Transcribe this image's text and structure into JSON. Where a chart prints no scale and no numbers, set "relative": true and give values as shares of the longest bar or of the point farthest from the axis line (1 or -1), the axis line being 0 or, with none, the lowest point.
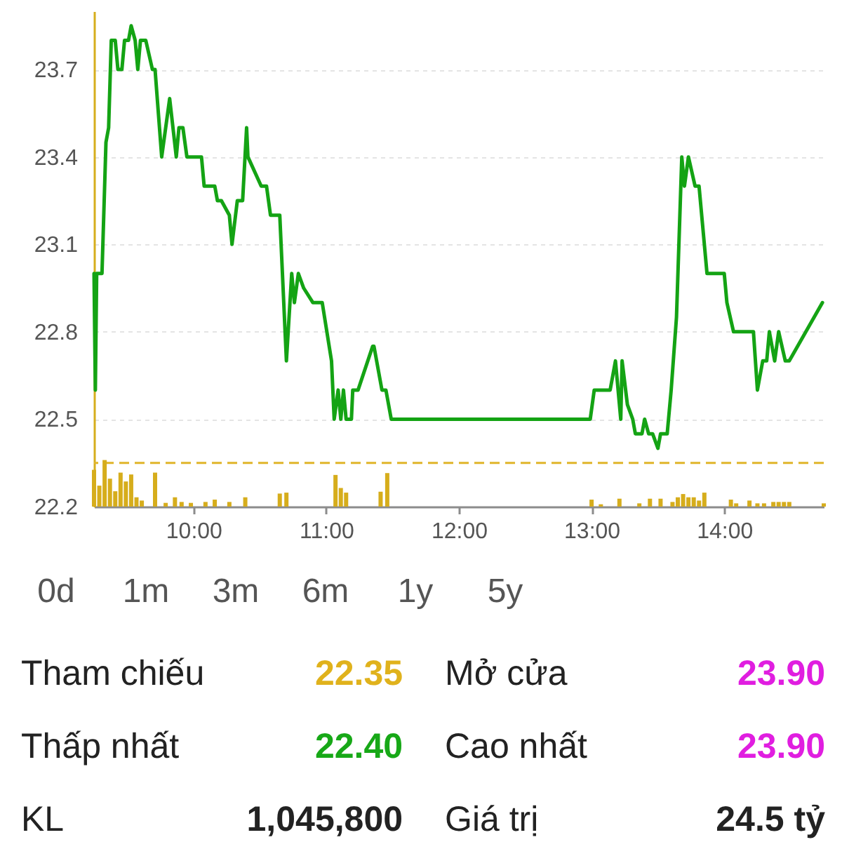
{
  "chart_data": [
    {
      "type": "line",
      "x": [
        9.25,
        9.26,
        9.27,
        9.31,
        9.34,
        9.36,
        9.38,
        9.41,
        9.43,
        9.46,
        9.48,
        9.51,
        9.53,
        9.56,
        9.58,
        9.6,
        9.64,
        9.69,
        9.71,
        9.76,
        9.79,
        9.82,
        9.87,
        9.89,
        9.92,
        9.95,
        10.06,
        10.08,
        10.16,
        10.18,
        10.21,
        10.27,
        10.29,
        10.33,
        10.37,
        10.4,
        10.41,
        10.51,
        10.55,
        10.58,
        10.65,
        10.7,
        10.74,
        10.76,
        10.79,
        10.83,
        10.9,
        10.97,
        11.04,
        11.06,
        11.09,
        11.11,
        11.13,
        11.15,
        11.19,
        11.2,
        11.24,
        11.35,
        11.36,
        11.42,
        11.45,
        11.49,
        12.99,
        13.02,
        13.14,
        13.18,
        13.22,
        13.23,
        13.27,
        13.31,
        13.33,
        13.38,
        13.4,
        13.43,
        13.46,
        13.5,
        13.52,
        13.57,
        13.6,
        13.64,
        13.68,
        13.7,
        13.73,
        13.78,
        13.81,
        13.87,
        14.0,
        14.02,
        14.07,
        14.22,
        14.25,
        14.29,
        14.32,
        14.34,
        14.38,
        14.41,
        14.46,
        14.49,
        14.74
      ],
      "series": [
        {
          "color": "#14a314",
          "values": [
            23.0,
            22.6,
            23.0,
            23.0,
            23.45,
            23.5,
            23.8,
            23.8,
            23.7,
            23.7,
            23.8,
            23.8,
            23.85,
            23.8,
            23.7,
            23.8,
            23.8,
            23.7,
            23.7,
            23.4,
            23.5,
            23.6,
            23.4,
            23.5,
            23.5,
            23.4,
            23.4,
            23.3,
            23.3,
            23.25,
            23.25,
            23.2,
            23.1,
            23.25,
            23.25,
            23.5,
            23.4,
            23.3,
            23.3,
            23.2,
            23.2,
            22.7,
            23.0,
            22.9,
            23.0,
            22.95,
            22.9,
            22.9,
            22.7,
            22.5,
            22.6,
            22.5,
            22.6,
            22.5,
            22.5,
            22.6,
            22.6,
            22.75,
            22.75,
            22.6,
            22.6,
            22.5,
            22.5,
            22.6,
            22.6,
            22.7,
            22.5,
            22.7,
            22.55,
            22.5,
            22.45,
            22.45,
            22.5,
            22.45,
            22.45,
            22.4,
            22.45,
            22.45,
            22.6,
            22.85,
            23.4,
            23.3,
            23.4,
            23.3,
            23.3,
            23.0,
            23.0,
            22.9,
            22.8,
            22.8,
            22.6,
            22.7,
            22.7,
            22.8,
            22.7,
            22.8,
            22.7,
            22.7,
            22.9
          ]
        }
      ],
      "xlim": [
        9.25,
        14.75
      ],
      "xticks": [
        {
          "value": 10,
          "label": "10:00"
        },
        {
          "value": 11,
          "label": "11:00"
        },
        {
          "value": 12,
          "label": "12:00"
        },
        {
          "value": 13,
          "label": "13:00"
        },
        {
          "value": 14,
          "label": "14:00"
        }
      ],
      "ylim": [
        22.2,
        23.9
      ],
      "yticks": [
        22.2,
        22.5,
        22.8,
        23.1,
        23.4,
        23.7
      ],
      "grid": "y",
      "ref_lines": [
        {
          "axis": "y",
          "value": 22.35,
          "color": "#e0b52a",
          "line_style": "dashed"
        }
      ]
    },
    {
      "type": "bar",
      "relative": true,
      "x": [
        9.25,
        9.29,
        9.33,
        9.37,
        9.41,
        9.45,
        9.49,
        9.53,
        9.57,
        9.61,
        9.71,
        9.79,
        9.86,
        9.91,
        9.98,
        10.09,
        10.16,
        10.27,
        10.39,
        10.65,
        10.7,
        11.07,
        11.11,
        11.15,
        11.41,
        11.46,
        13.0,
        13.07,
        13.21,
        13.36,
        13.44,
        13.52,
        13.61,
        13.65,
        13.69,
        13.73,
        13.77,
        13.81,
        13.85,
        14.05,
        14.09,
        14.19,
        14.25,
        14.3,
        14.37,
        14.41,
        14.45,
        14.49,
        14.75
      ],
      "series": [
        {
          "color": "#d6ad1c",
          "values": [
            0.79,
            0.45,
            1,
            0.6,
            0.33,
            0.73,
            0.54,
            0.69,
            0.2,
            0.13,
            0.73,
            0.08,
            0.2,
            0.1,
            0.08,
            0.1,
            0.15,
            0.1,
            0.2,
            0.28,
            0.3,
            0.68,
            0.4,
            0.3,
            0.32,
            0.72,
            0.15,
            0.05,
            0.17,
            0.07,
            0.17,
            0.17,
            0.1,
            0.2,
            0.27,
            0.2,
            0.2,
            0.13,
            0.3,
            0.15,
            0.07,
            0.13,
            0.07,
            0.07,
            0.1,
            0.1,
            0.1,
            0.1,
            0.07
          ]
        }
      ],
      "xlim": [
        9.25,
        14.75
      ],
      "tick_labels": false
    },
    {
      "type": "other",
      "annotations": [
        "0d",
        "1m",
        "3m",
        "6m",
        "1y",
        "5y"
      ],
      "categories": [
        "Tham chiếu",
        "Mở cửa",
        "Thấp nhất",
        "Cao nhất",
        "KL",
        "Giá trị"
      ],
      "value_labels": [
        "22.35",
        "23.90",
        "22.40",
        "23.90",
        "1,045,800",
        "24.5 tỷ"
      ],
      "colors": [
        "#e0b21c",
        "#e01ee0",
        "#17a817",
        "#e01ee0",
        "#222222",
        "#222222"
      ]
    }
  ]
}
